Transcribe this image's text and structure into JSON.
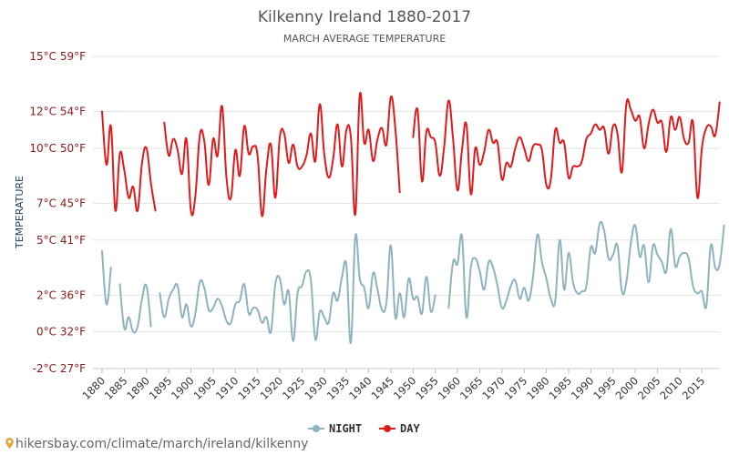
{
  "chart_data": {
    "type": "line",
    "title": "Kilkenny Ireland 1880-2017",
    "subtitle": "MARCH AVERAGE TEMPERATURE",
    "ylabel": "TEMPERATURE",
    "ylim": [
      -2,
      15
    ],
    "y_ticks": [
      {
        "value": -2,
        "label": "-2°C 27°F"
      },
      {
        "value": 0,
        "label": "0°C 32°F"
      },
      {
        "value": 2,
        "label": "2°C 36°F"
      },
      {
        "value": 5,
        "label": "5°C 41°F"
      },
      {
        "value": 7,
        "label": "7°C 45°F"
      },
      {
        "value": 10,
        "label": "10°C 50°F"
      },
      {
        "value": 12,
        "label": "12°C 54°F"
      },
      {
        "value": 15,
        "label": "15°C 59°F"
      }
    ],
    "xlim": [
      1880,
      2017
    ],
    "x_ticks": [
      1880,
      1885,
      1890,
      1895,
      1900,
      1905,
      1910,
      1915,
      1920,
      1925,
      1930,
      1935,
      1940,
      1945,
      1950,
      1955,
      1960,
      1965,
      1970,
      1975,
      1980,
      1985,
      1990,
      1995,
      2000,
      2005,
      2010,
      2015
    ],
    "grid": true,
    "legend_position": "bottom-center",
    "series": [
      {
        "name": "NIGHT",
        "color": "#8fb3be",
        "values": [
          4.4,
          1.5,
          3.5,
          null,
          2.6,
          0.2,
          0.8,
          0.0,
          0.3,
          1.8,
          2.5,
          0.3,
          null,
          2.1,
          0.8,
          1.8,
          2.3,
          2.5,
          0.8,
          1.5,
          0.3,
          1.0,
          2.7,
          2.4,
          1.2,
          1.3,
          1.8,
          1.4,
          0.6,
          0.5,
          1.5,
          1.7,
          2.6,
          1.0,
          1.3,
          1.2,
          0.5,
          0.8,
          0.0,
          2.6,
          2.9,
          1.5,
          2.2,
          -0.5,
          2.1,
          2.5,
          3.3,
          2.8,
          -0.4,
          1.1,
          0.8,
          0.5,
          2.1,
          1.7,
          3.0,
          3.6,
          -0.6,
          5.2,
          2.9,
          2.4,
          1.3,
          3.2,
          2.3,
          1.2,
          1.6,
          4.7,
          0.8,
          2.1,
          0.8,
          2.9,
          1.8,
          1.9,
          1.0,
          3.0,
          1.1,
          2.0,
          null,
          null,
          1.3,
          3.8,
          3.7,
          5.2,
          0.8,
          3.5,
          4.0,
          3.3,
          2.3,
          3.8,
          3.5,
          2.5,
          1.3,
          1.7,
          2.5,
          2.8,
          1.8,
          2.4,
          1.7,
          3.0,
          5.3,
          3.8,
          2.9,
          1.8,
          1.7,
          5.0,
          2.3,
          4.3,
          2.7,
          2.1,
          2.2,
          2.5,
          4.6,
          4.3,
          5.9,
          5.5,
          4.0,
          4.2,
          4.7,
          2.2,
          2.7,
          4.8,
          5.8,
          4.1,
          4.7,
          2.7,
          4.7,
          4.2,
          3.8,
          3.3,
          5.6,
          3.6,
          4.1,
          4.3,
          4.0,
          2.5,
          2.1,
          2.2,
          1.4,
          4.7,
          3.5,
          3.7,
          5.8
        ]
      },
      {
        "name": "DAY",
        "color": "#e01b1b",
        "values": [
          12.0,
          9.1,
          11.2,
          6.6,
          9.7,
          8.8,
          7.3,
          7.9,
          6.6,
          9.2,
          10.0,
          8.1,
          6.6,
          null,
          11.4,
          9.6,
          10.5,
          9.9,
          8.6,
          10.5,
          6.6,
          7.4,
          10.7,
          10.4,
          8.0,
          10.5,
          9.6,
          12.3,
          8.4,
          7.3,
          9.9,
          8.5,
          11.2,
          9.7,
          10.1,
          9.6,
          6.3,
          8.9,
          10.2,
          7.3,
          10.6,
          10.8,
          9.2,
          10.2,
          9.0,
          9.0,
          9.6,
          10.8,
          9.3,
          12.4,
          9.7,
          8.4,
          9.4,
          11.3,
          9.0,
          11.0,
          10.6,
          6.4,
          12.9,
          10.3,
          11.0,
          9.3,
          10.5,
          11.1,
          10.2,
          12.8,
          11.1,
          7.6,
          null,
          null,
          10.6,
          12.1,
          8.2,
          10.9,
          10.6,
          10.3,
          8.5,
          10.1,
          12.6,
          10.5,
          7.7,
          9.9,
          11.3,
          7.5,
          10.0,
          9.1,
          9.8,
          11.0,
          10.3,
          10.3,
          8.3,
          9.2,
          9.0,
          10.0,
          10.6,
          10.0,
          9.3,
          10.1,
          10.2,
          9.9,
          8.0,
          8.3,
          11.0,
          10.3,
          10.3,
          8.4,
          9.0,
          9.0,
          9.3,
          10.5,
          10.8,
          11.3,
          11.0,
          11.1,
          9.7,
          11.2,
          10.8,
          8.7,
          12.4,
          12.1,
          11.5,
          11.7,
          10.0,
          11.3,
          12.1,
          11.4,
          11.4,
          9.8,
          11.7,
          11.0,
          11.7,
          10.5,
          10.3,
          11.4,
          7.3,
          10.0,
          11.1,
          11.2,
          10.7,
          12.5
        ]
      }
    ]
  },
  "footer": {
    "url": "hikersbay.com/climate/march/ireland/kilkenny",
    "icon": "map-pin-icon"
  }
}
